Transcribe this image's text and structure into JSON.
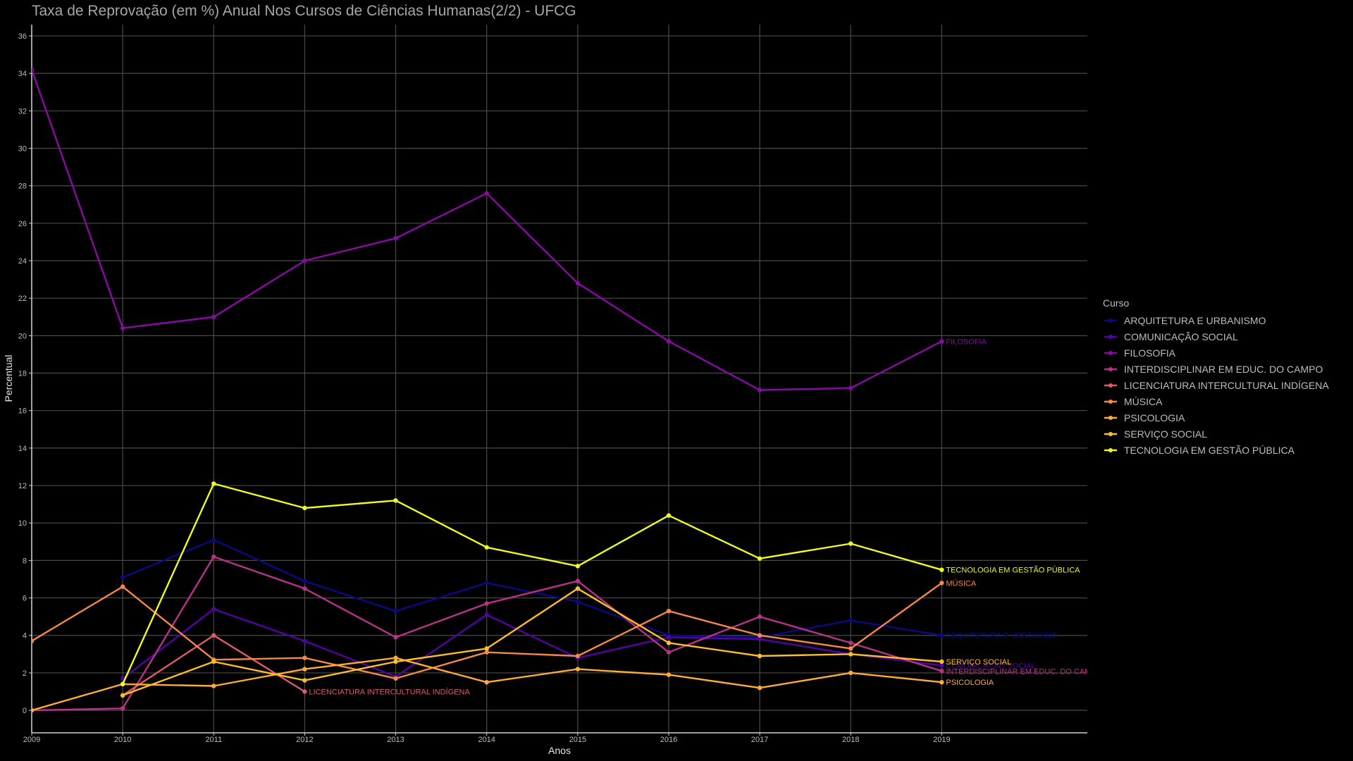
{
  "chart_data": {
    "type": "line",
    "title": "Taxa de Reprovação (em %) Anual Nos Cursos de Ciências Humanas(2/2) - UFCG",
    "xlabel": "Anos",
    "ylabel": "Percentual",
    "xlim": [
      2009,
      2020.6
    ],
    "ylim": [
      -1.2,
      36.6
    ],
    "xticks": [
      2009,
      2010,
      2011,
      2012,
      2013,
      2014,
      2015,
      2016,
      2017,
      2018,
      2019
    ],
    "yticks": [
      0,
      2,
      4,
      6,
      8,
      10,
      12,
      14,
      16,
      18,
      20,
      22,
      24,
      26,
      28,
      30,
      32,
      34,
      36
    ],
    "grid": true,
    "legend": {
      "title": "Curso",
      "position": "right"
    },
    "series": [
      {
        "name": "ARQUITETURA E URBANISMO",
        "color": "#0d0887",
        "x": [
          2010,
          2011,
          2012,
          2013,
          2014,
          2015,
          2016,
          2017,
          2018,
          2019
        ],
        "values": [
          7.1,
          9.1,
          6.9,
          5.3,
          6.8,
          5.8,
          4.0,
          3.9,
          4.8,
          4.0
        ],
        "end_label": "ARQUITETURA E URBANISMO",
        "end_x": 2019,
        "end_y": 4.0
      },
      {
        "name": "COMUNICAÇÃO SOCIAL",
        "color": "#5302a3",
        "x": [
          2010,
          2011,
          2012,
          2013,
          2014,
          2015,
          2016,
          2017,
          2018,
          2019
        ],
        "values": [
          1.7,
          5.4,
          3.7,
          1.8,
          5.1,
          2.8,
          3.9,
          3.8,
          3.0,
          2.4
        ],
        "end_label": "COMUNICAÇÃO SOCIAL",
        "end_x": 2019,
        "end_y": 2.4
      },
      {
        "name": "FILOSOFIA",
        "color": "#8b0aa5",
        "x": [
          2009,
          2010,
          2011,
          2012,
          2013,
          2014,
          2015,
          2016,
          2017,
          2018,
          2019
        ],
        "values": [
          34.2,
          20.4,
          21.0,
          24.0,
          25.2,
          27.6,
          22.8,
          19.7,
          17.1,
          17.2,
          19.7
        ],
        "end_label": "FILOSOFIA",
        "end_x": 2019,
        "end_y": 19.7
      },
      {
        "name": "INTERDISCIPLINAR EM EDUC. DO CAMPO",
        "color": "#b83289",
        "x": [
          2009,
          2010,
          2011,
          2012,
          2013,
          2014,
          2015,
          2016,
          2017,
          2018,
          2019
        ],
        "values": [
          0.0,
          0.1,
          8.2,
          6.5,
          3.9,
          5.7,
          6.9,
          3.1,
          5.0,
          3.6,
          2.1
        ],
        "end_label": "INTERDISCIPLINAR EM EDUC. DO CAMPO",
        "end_x": 2019,
        "end_y": 2.1
      },
      {
        "name": "LICENCIATURA INTERCULTURAL INDÍGENA",
        "color": "#db5c68",
        "x": [
          2010,
          2011,
          2012
        ],
        "values": [
          0.8,
          4.0,
          1.0
        ],
        "end_label": "LICENCIATURA INTERCULTURAL INDÍGENA",
        "end_x": 2012,
        "end_y": 1.0
      },
      {
        "name": "MÚSICA",
        "color": "#f48849",
        "x": [
          2009,
          2010,
          2011,
          2012,
          2013,
          2014,
          2015,
          2016,
          2017,
          2018,
          2019
        ],
        "values": [
          3.7,
          6.6,
          2.7,
          2.8,
          1.7,
          3.1,
          2.9,
          5.3,
          4.0,
          3.3,
          6.8
        ],
        "end_label": "MÚSICA",
        "end_x": 2019,
        "end_y": 6.8
      },
      {
        "name": "PSICOLOGIA",
        "color": "#fdac35",
        "x": [
          2009,
          2010,
          2011,
          2012,
          2013,
          2014,
          2015,
          2016,
          2017,
          2018,
          2019
        ],
        "values": [
          0.0,
          1.4,
          1.3,
          2.2,
          2.8,
          1.5,
          2.2,
          1.9,
          1.2,
          2.0,
          1.5
        ],
        "end_label": "PSICOLOGIA",
        "end_x": 2019,
        "end_y": 1.5
      },
      {
        "name": "SERVIÇO SOCIAL",
        "color": "#febd2a",
        "x": [
          2010,
          2011,
          2012,
          2013,
          2014,
          2015,
          2016,
          2017,
          2018,
          2019
        ],
        "values": [
          0.8,
          2.6,
          1.6,
          2.6,
          3.3,
          6.5,
          3.6,
          2.9,
          3.0,
          2.6
        ],
        "end_label": "SERVIÇO SOCIAL",
        "end_x": 2019,
        "end_y": 2.6
      },
      {
        "name": "TECNOLOGIA EM GESTÃO PÚBLICA",
        "color": "#f0f921",
        "x": [
          2010,
          2011,
          2012,
          2013,
          2014,
          2015,
          2016,
          2017,
          2018,
          2019
        ],
        "values": [
          1.4,
          12.1,
          10.8,
          11.2,
          8.7,
          7.7,
          10.4,
          8.1,
          8.9,
          7.5
        ],
        "end_label": "TECNOLOGIA EM GESTÃO PÚBLICA",
        "end_x": 2019,
        "end_y": 7.5
      }
    ]
  }
}
